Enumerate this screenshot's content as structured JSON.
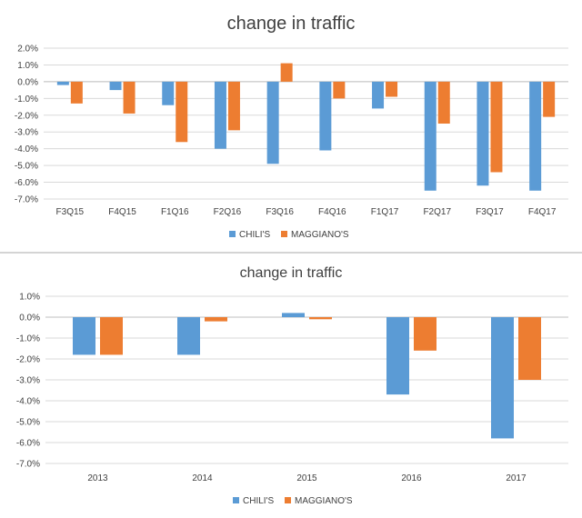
{
  "chart_data": [
    {
      "type": "bar",
      "title": "change in traffic",
      "categories": [
        "F3Q15",
        "F4Q15",
        "F1Q16",
        "F2Q16",
        "F3Q16",
        "F4Q16",
        "F1Q17",
        "F2Q17",
        "F3Q17",
        "F4Q17"
      ],
      "series": [
        {
          "name": "CHILI'S",
          "color": "#5b9bd5",
          "values": [
            -0.2,
            -0.5,
            -1.4,
            -4.0,
            -4.9,
            -4.1,
            -1.6,
            -6.5,
            -6.2,
            -6.5
          ]
        },
        {
          "name": "MAGGIANO'S",
          "color": "#ed7d31",
          "values": [
            -1.3,
            -1.9,
            -3.6,
            -2.9,
            1.1,
            -1.0,
            -0.9,
            -2.5,
            -5.4,
            -2.1
          ]
        }
      ],
      "ylim": [
        -7,
        2
      ],
      "yticks": [
        "2.0%",
        "1.0%",
        "0.0%",
        "-1.0%",
        "-2.0%",
        "-3.0%",
        "-4.0%",
        "-5.0%",
        "-6.0%",
        "-7.0%"
      ],
      "xlabel": "",
      "ylabel": "",
      "grid": true,
      "legend": "bottom"
    },
    {
      "type": "bar",
      "title": "change in traffic",
      "categories": [
        "2013",
        "2014",
        "2015",
        "2016",
        "2017"
      ],
      "series": [
        {
          "name": "CHILI'S",
          "color": "#5b9bd5",
          "values": [
            -1.8,
            -1.8,
            0.2,
            -3.7,
            -5.8
          ]
        },
        {
          "name": "MAGGIANO'S",
          "color": "#ed7d31",
          "values": [
            -1.8,
            -0.2,
            -0.1,
            -1.6,
            -3.0
          ]
        }
      ],
      "ylim": [
        -7,
        1
      ],
      "yticks": [
        "1.0%",
        "0.0%",
        "-1.0%",
        "-2.0%",
        "-3.0%",
        "-4.0%",
        "-5.0%",
        "-6.0%",
        "-7.0%"
      ],
      "xlabel": "",
      "ylabel": "",
      "grid": true,
      "legend": "bottom"
    }
  ]
}
